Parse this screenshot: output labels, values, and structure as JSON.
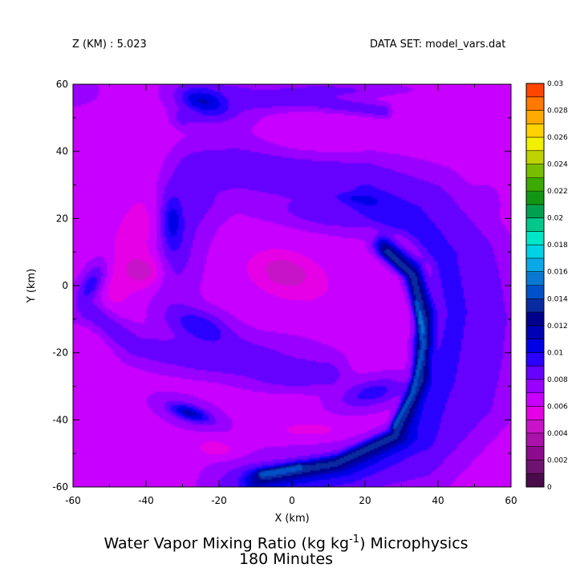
{
  "header": {
    "z_label": "Z (KM) : 5.023",
    "dataset_label": "DATA SET: model_vars.dat"
  },
  "title": {
    "line1_prefix": "Water Vapor Mixing Ratio (kg kg",
    "line1_sup": "-1",
    "line1_suffix": ") Microphysics",
    "line2": "180 Minutes"
  },
  "chart_data": {
    "type": "heatmap",
    "title": "Water Vapor Mixing Ratio (kg kg-1) Microphysics 180 Minutes",
    "xlabel": "X (km)",
    "ylabel": "Y (km)",
    "xlim": [
      -60,
      60
    ],
    "ylim": [
      -60,
      60
    ],
    "x_ticks": [
      -60,
      -40,
      -20,
      0,
      20,
      40,
      60
    ],
    "y_ticks": [
      -60,
      -40,
      -20,
      0,
      20,
      40,
      60
    ],
    "grid": false,
    "legend": "colorbar-right",
    "colorbar": {
      "levels": [
        0,
        0.001,
        0.002,
        0.003,
        0.004,
        0.005,
        0.006,
        0.007,
        0.008,
        0.009,
        0.01,
        0.011,
        0.012,
        0.013,
        0.014,
        0.015,
        0.016,
        0.017,
        0.018,
        0.019,
        0.02,
        0.021,
        0.022,
        0.023,
        0.024,
        0.025,
        0.026,
        0.027,
        0.028,
        0.029,
        0.03
      ],
      "labels": [
        "0",
        "0.002",
        "0.004",
        "0.006",
        "0.008",
        "0.01",
        "0.012",
        "0.014",
        "0.016",
        "0.018",
        "0.02",
        "0.022",
        "0.024",
        "0.026",
        "0.028",
        "0.03"
      ],
      "colors": [
        "#4b0a4b",
        "#6e1470",
        "#8c0a8c",
        "#aa12aa",
        "#c814c8",
        "#e600e6",
        "#c800ff",
        "#9a00ff",
        "#6600ff",
        "#2a00ff",
        "#0000e6",
        "#0000b4",
        "#00008c",
        "#0a2aa0",
        "#0050c8",
        "#0a78d2",
        "#0aa8e6",
        "#00d2e6",
        "#00e6c8",
        "#00c88c",
        "#00a050",
        "#149614",
        "#3caa00",
        "#78be00",
        "#bed200",
        "#f0f000",
        "#ffd200",
        "#ffaa00",
        "#ff7800",
        "#ff4600",
        "#ff0000",
        "#c80000",
        "#a00000",
        "#780000"
      ]
    },
    "field": {
      "base_value": 0.0067,
      "description_units": "kg kg-1",
      "features": [
        {
          "shape": "ellipse",
          "cx": 5,
          "cy": 40,
          "rx": 22,
          "ry": 9,
          "rot": 0,
          "value": 0.0052
        },
        {
          "shape": "ellipse",
          "cx": 22,
          "cy": 52,
          "rx": 20,
          "ry": 7,
          "rot": 0,
          "value": 0.0058
        },
        {
          "shape": "ellipse",
          "cx": -45,
          "cy": 10,
          "rx": 8,
          "ry": 40,
          "rot": -20,
          "value": 0.0054
        },
        {
          "shape": "ellipse",
          "cx": -40,
          "cy": 4,
          "rx": 6,
          "ry": 6,
          "rot": 0,
          "value": 0.0048
        },
        {
          "shape": "ellipse",
          "cx": 0,
          "cy": 2,
          "rx": 22,
          "ry": 12,
          "rot": -20,
          "value": 0.0058
        },
        {
          "shape": "ellipse",
          "cx": -2,
          "cy": 4,
          "rx": 9,
          "ry": 6,
          "rot": -15,
          "value": 0.005
        },
        {
          "shape": "ellipse",
          "cx": 48,
          "cy": -32,
          "rx": 6,
          "ry": 10,
          "rot": 0,
          "value": 0.0058
        },
        {
          "shape": "ellipse",
          "cx": -20,
          "cy": -49,
          "rx": 8,
          "ry": 4,
          "rot": -10,
          "value": 0.0052
        },
        {
          "shape": "ellipse",
          "cx": 5,
          "cy": -43,
          "rx": 12,
          "ry": 3,
          "rot": 0,
          "value": 0.0055
        },
        {
          "shape": "ellipse",
          "cx": -5,
          "cy": 30,
          "rx": 40,
          "ry": 10,
          "rot": -5,
          "value": 0.0075
        },
        {
          "shape": "ellipse",
          "cx": -30,
          "cy": 12,
          "rx": 8,
          "ry": 28,
          "rot": -10,
          "value": 0.0082
        },
        {
          "shape": "ellipse",
          "cx": -33,
          "cy": 20,
          "rx": 4,
          "ry": 12,
          "rot": 0,
          "value": 0.0098
        },
        {
          "shape": "ellipse",
          "cx": -15,
          "cy": -20,
          "rx": 26,
          "ry": 7,
          "rot": 0,
          "value": 0.0082
        },
        {
          "shape": "ellipse",
          "cx": -20,
          "cy": 55,
          "rx": 14,
          "ry": 10,
          "rot": 0,
          "value": 0.0082
        },
        {
          "shape": "ellipse",
          "cx": -25,
          "cy": 55,
          "rx": 9,
          "ry": 5,
          "rot": -20,
          "value": 0.0099
        },
        {
          "shape": "ellipse",
          "cx": 10,
          "cy": 58,
          "rx": 25,
          "ry": 3,
          "rot": 0,
          "value": 0.0085
        },
        {
          "shape": "ellipse",
          "cx": -25,
          "cy": -12,
          "rx": 11,
          "ry": 6,
          "rot": -20,
          "value": 0.0096
        },
        {
          "shape": "ellipse",
          "cx": -55,
          "cy": 0,
          "rx": 4,
          "ry": 10,
          "rot": -25,
          "value": 0.0099
        },
        {
          "shape": "ellipse",
          "cx": -28,
          "cy": -38,
          "rx": 12,
          "ry": 5,
          "rot": -20,
          "value": 0.0082
        },
        {
          "shape": "ellipse",
          "cx": -28,
          "cy": -38,
          "rx": 7,
          "ry": 2.5,
          "rot": -20,
          "value": 0.0099
        },
        {
          "shape": "ellipse",
          "cx": 10,
          "cy": 20,
          "rx": 20,
          "ry": 5,
          "rot": -10,
          "value": 0.0082
        },
        {
          "shape": "ellipse",
          "cx": 20,
          "cy": 26,
          "rx": 12,
          "ry": 3,
          "rot": -5,
          "value": 0.0095
        },
        {
          "shape": "ellipse",
          "cx": 28,
          "cy": 20,
          "rx": 14,
          "ry": 4,
          "rot": -20,
          "value": 0.0095
        },
        {
          "shape": "ellipse",
          "cx": 22,
          "cy": -32,
          "rx": 12,
          "ry": 5,
          "rot": 15,
          "value": 0.0095
        },
        {
          "shape": "ellipse",
          "cx": 0,
          "cy": -28,
          "rx": 15,
          "ry": 4,
          "rot": 0,
          "value": 0.0082
        },
        {
          "shape": "ellipse",
          "cx": 53,
          "cy": 25,
          "rx": 4,
          "ry": 5,
          "rot": 0,
          "value": 0.0078
        },
        {
          "shape": "ellipse",
          "cx": 60,
          "cy": -10,
          "rx": 5,
          "ry": 12,
          "rot": 0,
          "value": 0.0055
        },
        {
          "shape": "ellipse",
          "cx": -60,
          "cy": 58,
          "rx": 8,
          "ry": 5,
          "rot": 0,
          "value": 0.0078
        }
      ],
      "bands": [
        {
          "points": [
            [
              -28,
              27
            ],
            [
              -26,
              34
            ],
            [
              -15,
              36
            ],
            [
              0,
              34
            ],
            [
              20,
              32
            ],
            [
              38,
              25
            ],
            [
              50,
              10
            ],
            [
              55,
              -10
            ],
            [
              50,
              -35
            ],
            [
              35,
              -52
            ],
            [
              10,
              -58
            ],
            [
              -15,
              -60
            ]
          ],
          "width": 9,
          "value": 0.0086
        },
        {
          "points": [
            [
              20,
              26
            ],
            [
              33,
              20
            ],
            [
              42,
              8
            ],
            [
              45,
              -8
            ],
            [
              42,
              -28
            ],
            [
              35,
              -45
            ],
            [
              15,
              -55
            ],
            [
              -10,
              -59
            ]
          ],
          "width": 4.5,
          "value": 0.0098
        },
        {
          "points": [
            [
              25,
              12
            ],
            [
              33,
              5
            ],
            [
              37,
              -8
            ],
            [
              36,
              -28
            ],
            [
              30,
              -45
            ],
            [
              15,
              -53
            ],
            [
              -10,
              -58
            ]
          ],
          "width": 3,
          "value": 0.0116
        },
        {
          "points": [
            [
              26,
              10
            ],
            [
              33,
              3
            ],
            [
              36,
              -10
            ],
            [
              35,
              -28
            ],
            [
              28,
              -45
            ],
            [
              12,
              -53
            ],
            [
              -8,
              -57
            ]
          ],
          "width": 1.8,
          "value": 0.0136
        },
        {
          "points": [
            [
              34,
              -5
            ],
            [
              36,
              -18
            ],
            [
              33,
              -32
            ],
            [
              28,
              -42
            ]
          ],
          "width": 0.9,
          "value": 0.0144
        },
        {
          "points": [
            [
              2,
              -54
            ],
            [
              -2,
              -55
            ],
            [
              -8,
              -56
            ]
          ],
          "width": 1.2,
          "value": 0.0146
        },
        {
          "points": [
            [
              35,
              -8
            ],
            [
              36,
              -14
            ]
          ],
          "width": 0.5,
          "value": 0.0156
        },
        {
          "points": [
            [
              -55,
              -8
            ],
            [
              -43,
              -18
            ],
            [
              -25,
              -22
            ],
            [
              -10,
              -24
            ],
            [
              10,
              -26
            ]
          ],
          "width": 4.5,
          "value": 0.0086
        },
        {
          "points": [
            [
              -30,
              50
            ],
            [
              -15,
              55
            ],
            [
              5,
              55
            ],
            [
              25,
              52
            ]
          ],
          "width": 3,
          "value": 0.0086
        }
      ]
    }
  }
}
